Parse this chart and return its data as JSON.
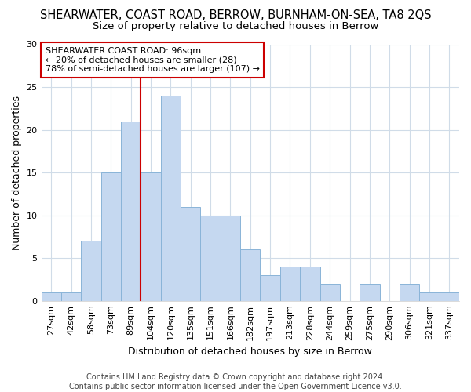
{
  "title": "SHEARWATER, COAST ROAD, BERROW, BURNHAM-ON-SEA, TA8 2QS",
  "subtitle": "Size of property relative to detached houses in Berrow",
  "xlabel": "Distribution of detached houses by size in Berrow",
  "ylabel": "Number of detached properties",
  "bar_color": "#c5d8f0",
  "bar_edge_color": "#8ab4d8",
  "categories": [
    "27sqm",
    "42sqm",
    "58sqm",
    "73sqm",
    "89sqm",
    "104sqm",
    "120sqm",
    "135sqm",
    "151sqm",
    "166sqm",
    "182sqm",
    "197sqm",
    "213sqm",
    "228sqm",
    "244sqm",
    "259sqm",
    "275sqm",
    "290sqm",
    "306sqm",
    "321sqm",
    "337sqm"
  ],
  "values": [
    1,
    1,
    7,
    15,
    21,
    15,
    24,
    11,
    10,
    10,
    6,
    3,
    4,
    4,
    2,
    0,
    2,
    0,
    2,
    1,
    1
  ],
  "ylim": [
    0,
    30
  ],
  "yticks": [
    0,
    5,
    10,
    15,
    20,
    25,
    30
  ],
  "vline_index": 4,
  "vline_color": "#cc0000",
  "annotation_text": "SHEARWATER COAST ROAD: 96sqm\n← 20% of detached houses are smaller (28)\n78% of semi-detached houses are larger (107) →",
  "annotation_box_color": "#ffffff",
  "annotation_box_edge": "#cc0000",
  "footer_line1": "Contains HM Land Registry data © Crown copyright and database right 2024.",
  "footer_line2": "Contains public sector information licensed under the Open Government Licence v3.0.",
  "background_color": "#ffffff",
  "plot_bg_color": "#ffffff",
  "grid_color": "#d0dce8",
  "title_fontsize": 10.5,
  "subtitle_fontsize": 9.5,
  "label_fontsize": 9,
  "tick_fontsize": 8,
  "annot_fontsize": 8,
  "footer_fontsize": 7
}
